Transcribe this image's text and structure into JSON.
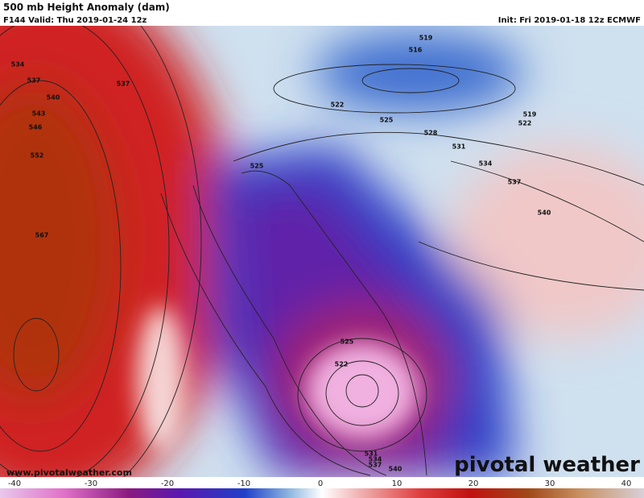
{
  "header": {
    "title": "500 mb Height Anomaly (dam)",
    "valid": "F144 Valid: Thu 2019-01-24 12z",
    "init": "Init: Fri 2019-01-18 12z ECMWF"
  },
  "contour_labels": [
    "534",
    "537",
    "540",
    "543",
    "546",
    "552",
    "567",
    "537",
    "519",
    "516",
    "522",
    "525",
    "528",
    "531",
    "534",
    "537",
    "540",
    "519",
    "522",
    "525",
    "525",
    "522",
    "531",
    "534",
    "537",
    "540"
  ],
  "watermark": "www.pivotalweather.com",
  "logo": "pivotal weather",
  "colorbar": {
    "ticks": [
      -40,
      -30,
      -20,
      -10,
      0,
      10,
      20,
      30,
      40
    ]
  }
}
